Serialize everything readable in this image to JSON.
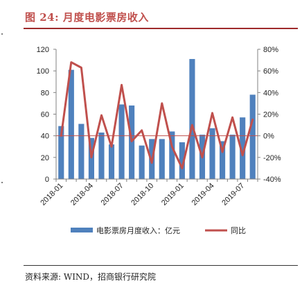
{
  "figure": {
    "title": "图 24: 月度电影票房收入",
    "source": "资料来源: WIND，招商银行研究院"
  },
  "colors": {
    "bar": "#4f81bd",
    "line": "#c0504d",
    "title": "#c0504d",
    "zero_line": "#c0504d"
  },
  "chart_data": {
    "type": "bar",
    "title": "",
    "x_tick_labels": [
      "2018-01",
      "2018-04",
      "2018-07",
      "2018-10",
      "2019-01",
      "2019-04",
      "2019-07"
    ],
    "categories": [
      "2018-01",
      "2018-02",
      "2018-03",
      "2018-04",
      "2018-05",
      "2018-06",
      "2018-07",
      "2018-08",
      "2018-09",
      "2018-10",
      "2018-11",
      "2018-12",
      "2019-01",
      "2019-02",
      "2019-03",
      "2019-04",
      "2019-05",
      "2019-06",
      "2019-07",
      "2019-08"
    ],
    "series": [
      {
        "name": "电影票房月度收入：亿元",
        "type": "bar",
        "axis": "left",
        "values": [
          49,
          101,
          51,
          38,
          43,
          32,
          69,
          68,
          31,
          37,
          37,
          44,
          34,
          111,
          41,
          47,
          35,
          41,
          57,
          78
        ]
      },
      {
        "name": "同比",
        "type": "line",
        "axis": "right",
        "unit": "%",
        "values": [
          0,
          68,
          63,
          -20,
          19,
          -10,
          47,
          -5,
          5,
          -25,
          30,
          -10,
          -30,
          10,
          -20,
          21,
          -15,
          17,
          -18,
          15
        ]
      }
    ],
    "y_left": {
      "min": 0,
      "max": 120,
      "ticks": [
        0,
        20,
        40,
        60,
        80,
        100,
        120
      ]
    },
    "y_right": {
      "min": -40,
      "max": 80,
      "ticks": [
        "-40%",
        "-20%",
        "0%",
        "20%",
        "40%",
        "60%",
        "80%"
      ],
      "tick_values": [
        -40,
        -20,
        0,
        20,
        40,
        60,
        80
      ]
    },
    "legend": {
      "placement": "bottom"
    },
    "grid": false
  }
}
